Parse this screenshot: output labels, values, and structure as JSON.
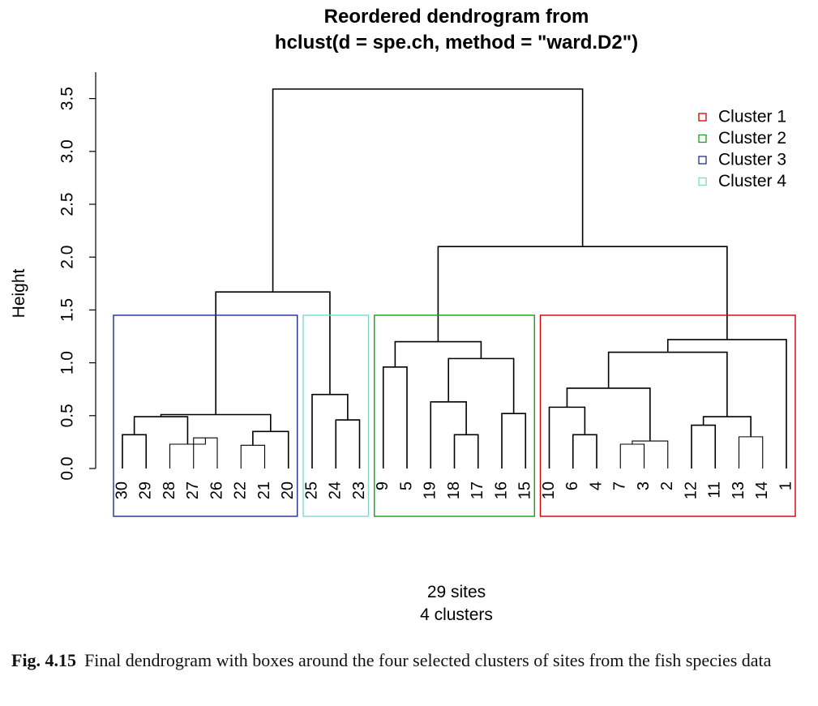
{
  "chart_data": {
    "type": "dendrogram",
    "title": [
      "Reordered dendrogram from",
      "hclust(d = spe.ch, method = \"ward.D2\")"
    ],
    "ylabel": "Height",
    "ylim": [
      0,
      3.7
    ],
    "yticks": [
      "0.0",
      "0.5",
      "1.0",
      "1.5",
      "2.0",
      "2.5",
      "3.0",
      "3.5"
    ],
    "leaves": [
      "30",
      "29",
      "28",
      "27",
      "26",
      "22",
      "21",
      "20",
      "25",
      "24",
      "23",
      "9",
      "5",
      "19",
      "18",
      "17",
      "16",
      "15",
      "10",
      "6",
      "4",
      "7",
      "3",
      "2",
      "12",
      "11",
      "13",
      "14",
      "1"
    ],
    "merges": [
      {
        "a": "30",
        "b": "29",
        "h": 0.32
      },
      {
        "a": "27",
        "b": "26",
        "h": 0.29
      },
      {
        "a": "28",
        "b": "m2",
        "h": 0.23
      },
      {
        "a": "m1",
        "b": "m3",
        "h": 0.49
      },
      {
        "a": "22",
        "b": "21",
        "h": 0.22
      },
      {
        "a": "m5",
        "b": "20",
        "h": 0.35
      },
      {
        "a": "m4",
        "b": "m6",
        "h": 0.51
      },
      {
        "a": "24",
        "b": "23",
        "h": 0.46
      },
      {
        "a": "25",
        "b": "m8",
        "h": 0.7
      },
      {
        "a": "m7",
        "b": "m9",
        "h": 1.67
      },
      {
        "a": "9",
        "b": "5",
        "h": 0.96
      },
      {
        "a": "18",
        "b": "17",
        "h": 0.32
      },
      {
        "a": "19",
        "b": "m12",
        "h": 0.63
      },
      {
        "a": "16",
        "b": "15",
        "h": 0.52
      },
      {
        "a": "m13",
        "b": "m14",
        "h": 1.04
      },
      {
        "a": "m11",
        "b": "m15",
        "h": 1.2
      },
      {
        "a": "6",
        "b": "4",
        "h": 0.32
      },
      {
        "a": "10",
        "b": "m17",
        "h": 0.58
      },
      {
        "a": "7",
        "b": "3",
        "h": 0.23
      },
      {
        "a": "m19",
        "b": "2",
        "h": 0.26
      },
      {
        "a": "m18",
        "b": "m20",
        "h": 0.76
      },
      {
        "a": "12",
        "b": "11",
        "h": 0.41
      },
      {
        "a": "13",
        "b": "14",
        "h": 0.3
      },
      {
        "a": "m22",
        "b": "m23",
        "h": 0.49
      },
      {
        "a": "m21",
        "b": "m24",
        "h": 1.1
      },
      {
        "a": "m25",
        "b": "1",
        "h": 1.22
      },
      {
        "a": "m16",
        "b": "m26",
        "h": 2.1
      },
      {
        "a": "m10",
        "b": "m27",
        "h": 3.59
      }
    ],
    "clusters": [
      {
        "name": "Cluster 1",
        "color": "#cc0000",
        "leaves": [
          "10",
          "6",
          "4",
          "7",
          "3",
          "2",
          "12",
          "11",
          "13",
          "14",
          "1"
        ]
      },
      {
        "name": "Cluster 2",
        "color": "#1a9e1a",
        "leaves": [
          "9",
          "5",
          "19",
          "18",
          "17",
          "16",
          "15"
        ]
      },
      {
        "name": "Cluster 3",
        "color": "#1f2f8a",
        "leaves": [
          "30",
          "29",
          "28",
          "27",
          "26",
          "22",
          "21",
          "20"
        ]
      },
      {
        "name": "Cluster 4",
        "color": "#7fd8d0",
        "leaves": [
          "25",
          "24",
          "23"
        ]
      }
    ],
    "box_order": [
      "Cluster 3",
      "Cluster 4",
      "Cluster 2",
      "Cluster 1"
    ],
    "legend_position": "top-right",
    "subtitle": [
      "29 sites",
      "4 clusters"
    ]
  },
  "caption": {
    "label": "Fig. 4.15",
    "text": "Final dendrogram with boxes around the four selected clusters of sites from the fish species data"
  }
}
